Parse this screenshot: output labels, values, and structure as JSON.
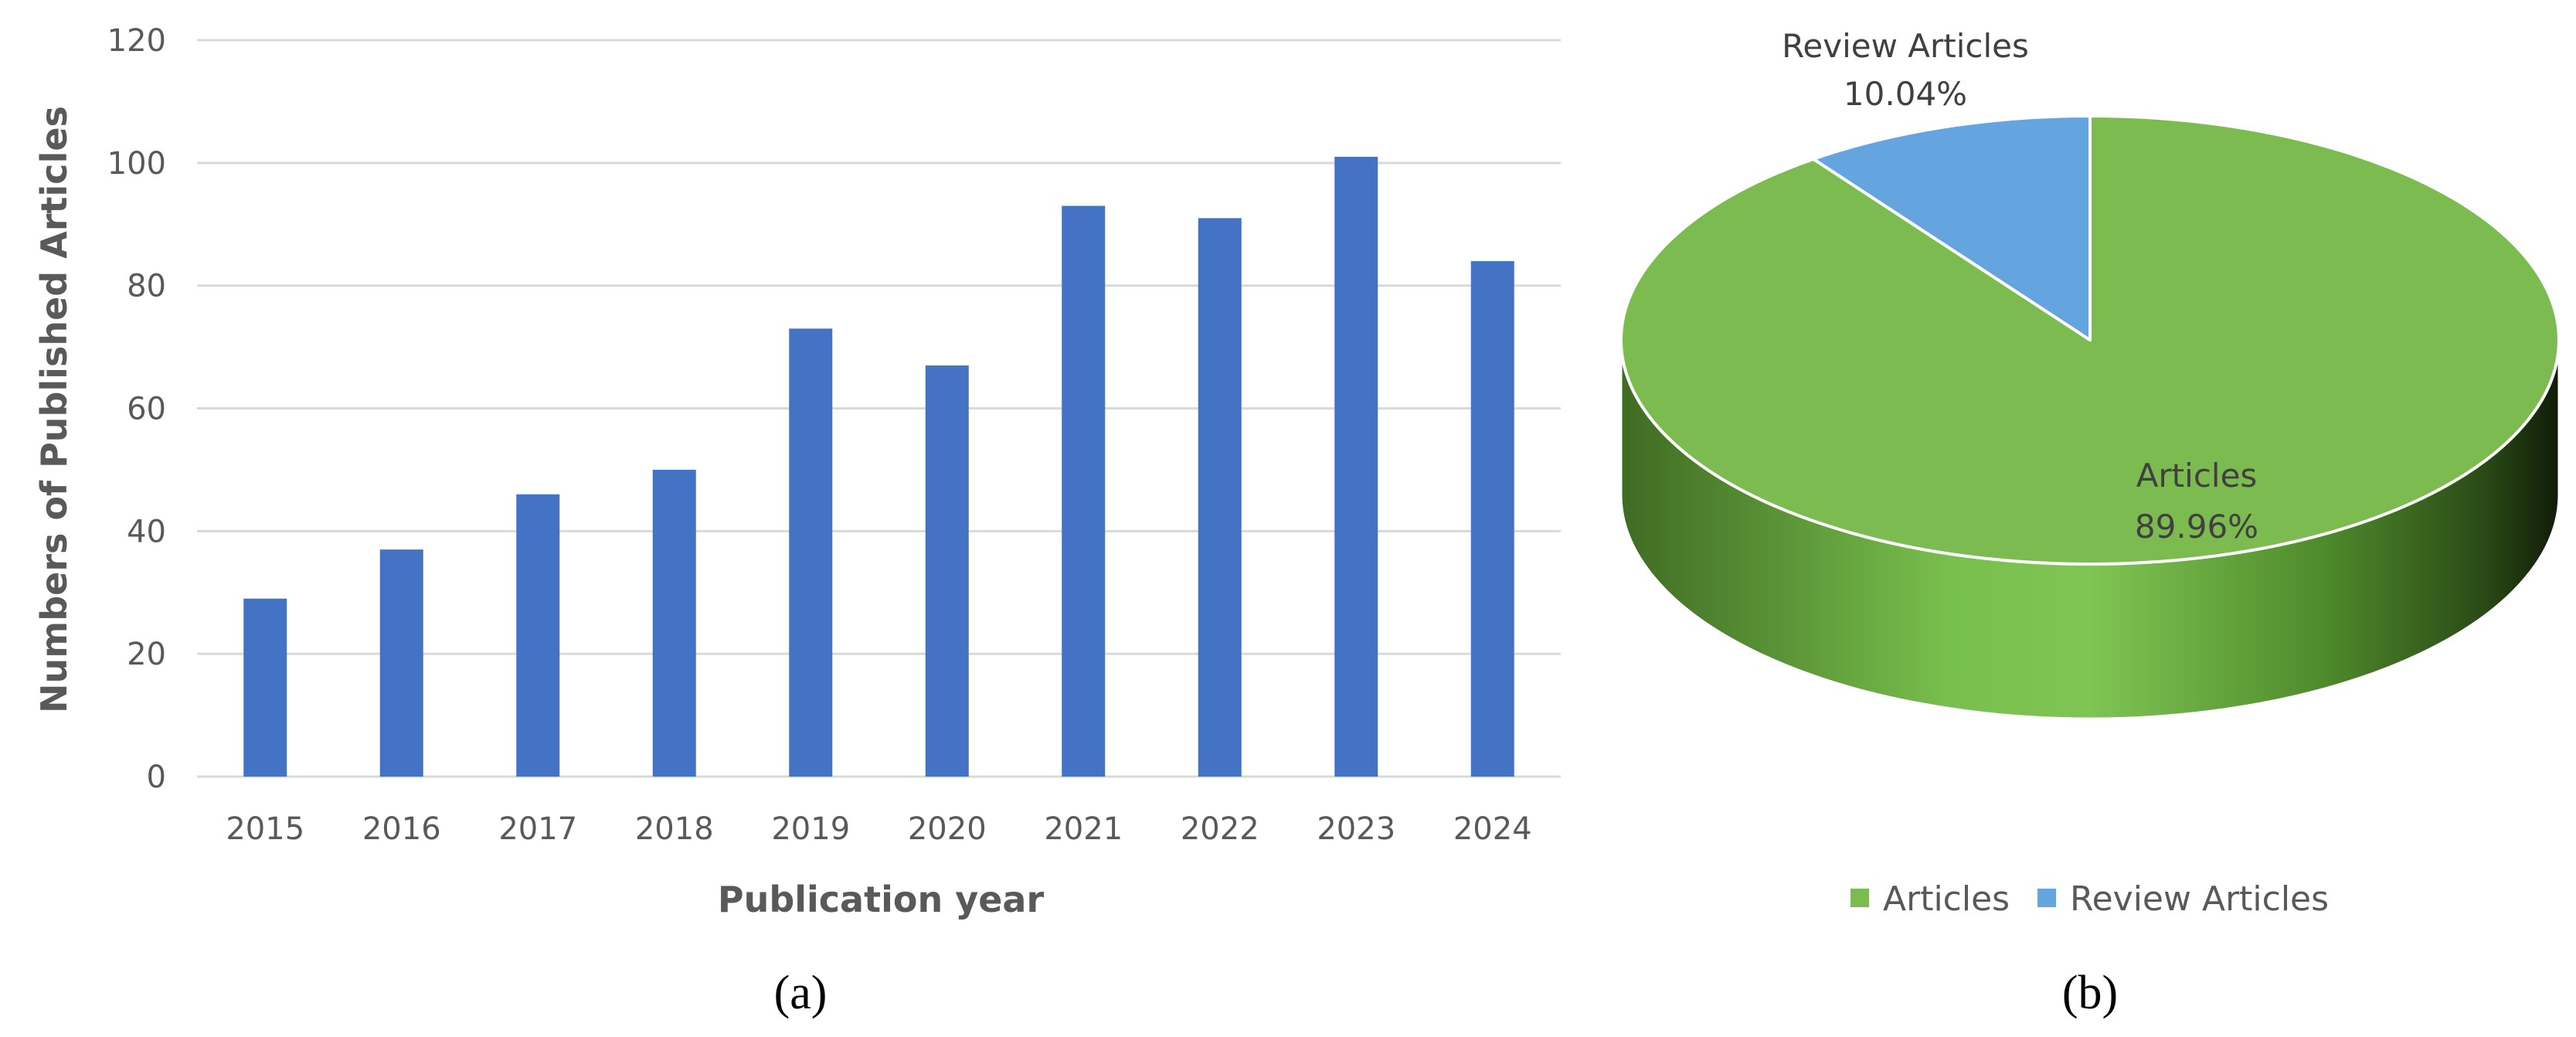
{
  "chart_data": [
    {
      "type": "bar",
      "categories": [
        "2015",
        "2016",
        "2017",
        "2018",
        "2019",
        "2020",
        "2021",
        "2022",
        "2023",
        "2024"
      ],
      "values": [
        29,
        37,
        46,
        50,
        73,
        67,
        93,
        91,
        101,
        84
      ],
      "xlabel": "Publication year",
      "ylabel": "Numbers of Published Articles",
      "ylim": [
        0,
        120
      ],
      "yticks": [
        0,
        20,
        40,
        60,
        80,
        100,
        120
      ],
      "grid": true,
      "bar_color": "#4472C4",
      "panel_label": "(a)"
    },
    {
      "type": "pie",
      "labels": [
        "Articles",
        "Review Articles"
      ],
      "values": [
        89.96,
        10.04
      ],
      "value_labels": [
        "89.96%",
        "10.04%"
      ],
      "colors": [
        "#7CBB4F",
        "#64A5E0"
      ],
      "legend": {
        "position": "bottom",
        "entries": [
          "Articles",
          "Review Articles"
        ]
      },
      "style": "3d",
      "panel_label": "(b)"
    }
  ]
}
